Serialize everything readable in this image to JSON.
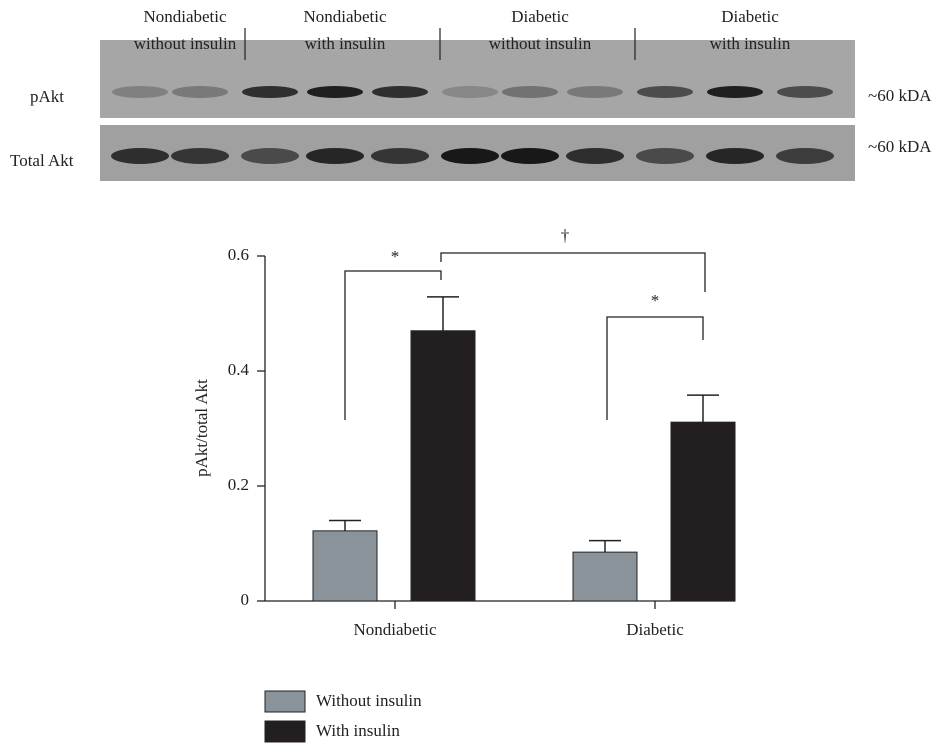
{
  "blot": {
    "groups": [
      [
        "Nondiabetic",
        "without insulin"
      ],
      [
        "Nondiabetic",
        "with insulin"
      ],
      [
        "Diabetic",
        "without insulin"
      ],
      [
        "Diabetic",
        "with insulin"
      ]
    ],
    "rows": [
      "pAkt",
      "Total Akt"
    ],
    "sizes": [
      "~60 kDA",
      "~60 kDA"
    ]
  },
  "chart_data": {
    "type": "bar",
    "ylabel": "pAkt/total Akt",
    "categories": [
      "Nondiabetic",
      "Diabetic"
    ],
    "series": [
      {
        "name": "Without insulin",
        "color": "#8a9399",
        "values": [
          0.122,
          0.085
        ],
        "errors": [
          0.018,
          0.02
        ]
      },
      {
        "name": "With insulin",
        "color": "#231f20",
        "values": [
          0.47,
          0.311
        ],
        "errors": [
          0.059,
          0.047
        ]
      }
    ],
    "ylim": [
      0,
      0.6
    ],
    "yticks": [
      0,
      0.2,
      0.4,
      0.6
    ],
    "annotations": [
      "*",
      "†",
      "*"
    ]
  }
}
